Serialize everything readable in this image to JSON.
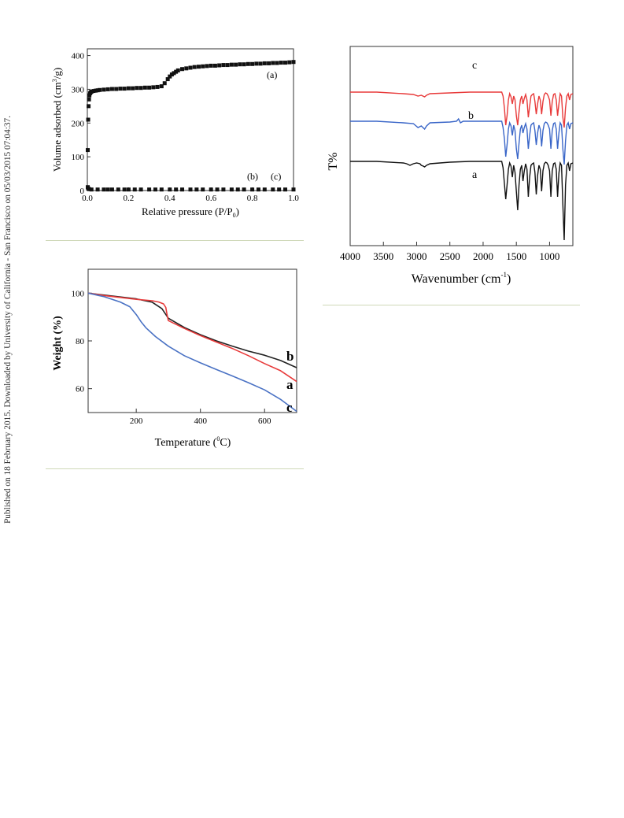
{
  "side_note": "Published on 18 February 2015. Downloaded by University of California - San Francisco on 05/03/2015 07:04:37.",
  "colors": {
    "a_black": "#111111",
    "b_blue": "#3a66c8",
    "c_red": "#e83a3a",
    "tga_b_black": "#222222",
    "tga_a_red": "#e83a3a",
    "tga_c_blue": "#4a72c4",
    "separator": "#cfd8b8"
  },
  "chart_data": [
    {
      "id": "isotherm",
      "type": "scatter",
      "xlabel_main": "Relative pressure (P/P",
      "xlabel_sub": "0",
      "xlabel_end": ")",
      "ylabel_main": "Volume adsorbed (cm",
      "ylabel_sup": "3",
      "ylabel_end": "/g)",
      "xlim": [
        0,
        1.0
      ],
      "ylim": [
        0,
        420
      ],
      "xticks": [
        "0.0",
        "0.2",
        "0.4",
        "0.6",
        "0.8",
        "1.0"
      ],
      "xtick_values": [
        0,
        0.2,
        0.4,
        0.6,
        0.8,
        1.0
      ],
      "yticks": [
        "0",
        "100",
        "200",
        "300",
        "400"
      ],
      "ytick_values": [
        0,
        100,
        200,
        300,
        400
      ],
      "annotations": [
        "(a)",
        "(b)",
        "(c)"
      ],
      "series": [
        {
          "name": "(a)",
          "x": [
            0.002,
            0.004,
            0.006,
            0.008,
            0.01,
            0.013,
            0.016,
            0.02,
            0.03,
            0.04,
            0.05,
            0.06,
            0.08,
            0.1,
            0.12,
            0.14,
            0.16,
            0.18,
            0.2,
            0.22,
            0.24,
            0.26,
            0.28,
            0.3,
            0.32,
            0.34,
            0.36,
            0.375,
            0.39,
            0.4,
            0.41,
            0.42,
            0.43,
            0.44,
            0.46,
            0.48,
            0.5,
            0.52,
            0.54,
            0.56,
            0.58,
            0.6,
            0.62,
            0.64,
            0.66,
            0.68,
            0.7,
            0.72,
            0.74,
            0.76,
            0.78,
            0.8,
            0.82,
            0.84,
            0.86,
            0.88,
            0.9,
            0.92,
            0.94,
            0.96,
            0.98,
            1.0
          ],
          "y": [
            120,
            210,
            250,
            270,
            282,
            288,
            291,
            293,
            295,
            296,
            297,
            298,
            299,
            300,
            301,
            301,
            302,
            302,
            303,
            303,
            304,
            304,
            305,
            305,
            306,
            307,
            309,
            318,
            330,
            338,
            344,
            348,
            352,
            356,
            360,
            362,
            364,
            366,
            367,
            368,
            369,
            370,
            370,
            371,
            372,
            372,
            373,
            373,
            374,
            374,
            375,
            375,
            376,
            376,
            377,
            377,
            378,
            378,
            379,
            379,
            380,
            381
          ]
        },
        {
          "name": "(b)/(c)",
          "x": [
            0.002,
            0.004,
            0.008,
            0.02,
            0.05,
            0.08,
            0.1,
            0.12,
            0.15,
            0.18,
            0.2,
            0.23,
            0.26,
            0.3,
            0.33,
            0.36,
            0.4,
            0.43,
            0.46,
            0.5,
            0.53,
            0.56,
            0.6,
            0.63,
            0.66,
            0.7,
            0.73,
            0.76,
            0.8,
            0.83,
            0.86,
            0.9,
            0.93,
            0.96,
            1.0
          ],
          "y": [
            10,
            6,
            4,
            3,
            3,
            3,
            3,
            3,
            3,
            3,
            3,
            3,
            3,
            3,
            3,
            3,
            3,
            3,
            3,
            3,
            3,
            3,
            3,
            3,
            3,
            3,
            3,
            3,
            3,
            3,
            3,
            3,
            3,
            3,
            3
          ]
        }
      ]
    },
    {
      "id": "ftir",
      "type": "line",
      "xlabel_main": "Wavenumber (cm",
      "xlabel_sup": "-1",
      "xlabel_end": ")",
      "ylabel": "T%",
      "xlim": [
        4000,
        650
      ],
      "xticks": [
        "4000",
        "3500",
        "3000",
        "2500",
        "2000",
        "1500",
        "1000"
      ],
      "xtick_values": [
        4000,
        3500,
        3000,
        2500,
        2000,
        1500,
        1000
      ],
      "series": [
        {
          "name": "c",
          "offset": 88,
          "x": [
            4000,
            3600,
            3200,
            3050,
            2980,
            2930,
            2880,
            2850,
            2800,
            2500,
            2200,
            2000,
            1800,
            1720,
            1700,
            1680,
            1660,
            1640,
            1620,
            1600,
            1580,
            1560,
            1540,
            1520,
            1500,
            1480,
            1460,
            1440,
            1420,
            1400,
            1380,
            1360,
            1340,
            1320,
            1300,
            1280,
            1260,
            1240,
            1220,
            1200,
            1180,
            1160,
            1140,
            1120,
            1100,
            1080,
            1060,
            1040,
            1020,
            1000,
            980,
            960,
            940,
            920,
            900,
            880,
            860,
            840,
            820,
            800,
            780,
            760,
            740,
            720,
            700,
            680,
            650
          ],
          "y": [
            0,
            0,
            -2,
            -3,
            -5,
            -4,
            -6,
            -4,
            -2,
            -1,
            0,
            0,
            0,
            0,
            -5,
            -20,
            -42,
            -30,
            -10,
            -2,
            -6,
            -15,
            -5,
            -10,
            -30,
            -42,
            -25,
            -10,
            -5,
            -15,
            -8,
            -3,
            -10,
            -32,
            -18,
            -5,
            -3,
            -2,
            -12,
            -28,
            -15,
            -5,
            -10,
            -28,
            -12,
            -3,
            -1,
            -2,
            -5,
            -10,
            -30,
            -12,
            -3,
            -2,
            -10,
            -30,
            -15,
            -2,
            -5,
            -32,
            -45,
            -20,
            -5,
            -2,
            -10,
            -3,
            -2
          ]
        },
        {
          "name": "b",
          "offset": 51,
          "x": [
            4000,
            3600,
            3200,
            3050,
            2980,
            2930,
            2880,
            2850,
            2800,
            2500,
            2400,
            2370,
            2340,
            2300,
            2200,
            2000,
            1800,
            1720,
            1700,
            1680,
            1660,
            1640,
            1620,
            1600,
            1580,
            1560,
            1540,
            1520,
            1500,
            1480,
            1460,
            1440,
            1420,
            1400,
            1380,
            1360,
            1340,
            1320,
            1300,
            1280,
            1260,
            1240,
            1220,
            1200,
            1180,
            1160,
            1140,
            1120,
            1100,
            1080,
            1060,
            1040,
            1020,
            1000,
            980,
            960,
            940,
            920,
            900,
            880,
            860,
            840,
            820,
            800,
            780,
            760,
            740,
            720,
            700,
            680,
            650
          ],
          "y": [
            0,
            0,
            -2,
            -3,
            -8,
            -6,
            -10,
            -6,
            -2,
            -1,
            0,
            3,
            -2,
            0,
            0,
            0,
            0,
            0,
            -8,
            -22,
            -45,
            -30,
            -10,
            -2,
            -6,
            -18,
            -5,
            -12,
            -35,
            -48,
            -28,
            -10,
            -5,
            -15,
            -8,
            -3,
            -10,
            -35,
            -18,
            -5,
            -3,
            -2,
            -12,
            -30,
            -15,
            -5,
            -10,
            -32,
            -12,
            -3,
            -1,
            -2,
            -5,
            -10,
            -35,
            -12,
            -3,
            -2,
            -10,
            -35,
            -15,
            -2,
            -5,
            -35,
            -55,
            -25,
            -5,
            -2,
            -10,
            -3,
            -2
          ]
        },
        {
          "name": "a",
          "offset": 0,
          "x": [
            4000,
            3600,
            3200,
            3150,
            3100,
            3050,
            3000,
            2950,
            2930,
            2900,
            2880,
            2850,
            2800,
            2500,
            2200,
            2000,
            1800,
            1720,
            1700,
            1680,
            1660,
            1640,
            1620,
            1600,
            1580,
            1560,
            1540,
            1520,
            1500,
            1480,
            1460,
            1440,
            1420,
            1400,
            1380,
            1360,
            1340,
            1320,
            1300,
            1280,
            1260,
            1240,
            1220,
            1200,
            1180,
            1160,
            1140,
            1120,
            1100,
            1080,
            1060,
            1040,
            1020,
            1000,
            980,
            960,
            940,
            920,
            900,
            880,
            860,
            840,
            820,
            800,
            780,
            760,
            740,
            720,
            700,
            680,
            650
          ],
          "y": [
            0,
            0,
            -2,
            -3,
            -5,
            -3,
            -2,
            -3,
            -5,
            -6,
            -7,
            -5,
            -3,
            -1,
            0,
            0,
            0,
            0,
            -8,
            -28,
            -48,
            -30,
            -10,
            -2,
            -6,
            -20,
            -5,
            -14,
            -38,
            -62,
            -30,
            -10,
            -5,
            -25,
            -12,
            -3,
            -10,
            -45,
            -20,
            -5,
            -3,
            -2,
            -14,
            -42,
            -18,
            -5,
            -10,
            -38,
            -12,
            -3,
            -1,
            -2,
            -5,
            -12,
            -45,
            -12,
            -3,
            -2,
            -10,
            -45,
            -15,
            -2,
            -5,
            -55,
            -100,
            -30,
            -5,
            -2,
            -12,
            -3,
            -2
          ]
        }
      ],
      "labels": [
        "c",
        "b",
        "a"
      ]
    },
    {
      "id": "tga",
      "type": "line",
      "xlabel_main": "Temperature (",
      "xlabel_sup": "0",
      "xlabel_end": "C)",
      "ylabel": "Weight (%)",
      "xlim": [
        50,
        700
      ],
      "ylim": [
        50,
        110
      ],
      "xticks": [
        "200",
        "400",
        "600"
      ],
      "xtick_values": [
        200,
        400,
        600
      ],
      "yticks": [
        "60",
        "80",
        "100"
      ],
      "ytick_values": [
        60,
        80,
        100
      ],
      "series": [
        {
          "name": "b",
          "x": [
            50,
            100,
            150,
            200,
            250,
            280,
            300,
            350,
            400,
            450,
            500,
            550,
            600,
            650,
            700
          ],
          "y": [
            100,
            99.2,
            98.4,
            97.6,
            96.2,
            93.5,
            89.5,
            85.6,
            82.6,
            80.0,
            77.8,
            75.7,
            74.0,
            71.8,
            68.8
          ]
        },
        {
          "name": "a",
          "x": [
            50,
            100,
            150,
            200,
            250,
            270,
            285,
            292,
            296,
            300,
            350,
            400,
            450,
            500,
            550,
            600,
            650,
            700
          ],
          "y": [
            100,
            99.0,
            98.2,
            97.4,
            96.8,
            96.3,
            95.5,
            94.0,
            91.0,
            88.5,
            85.2,
            82.2,
            79.5,
            76.8,
            73.8,
            70.5,
            67.5,
            63.0
          ]
        },
        {
          "name": "c",
          "x": [
            50,
            100,
            150,
            180,
            200,
            215,
            230,
            260,
            300,
            350,
            400,
            450,
            500,
            550,
            600,
            650,
            700
          ],
          "y": [
            100,
            98.5,
            96.3,
            94.3,
            91.0,
            88.0,
            85.5,
            81.8,
            77.8,
            73.8,
            70.8,
            68.0,
            65.3,
            62.5,
            59.5,
            55.5,
            50.5
          ]
        }
      ],
      "labels": [
        "b",
        "a",
        "c"
      ]
    }
  ]
}
